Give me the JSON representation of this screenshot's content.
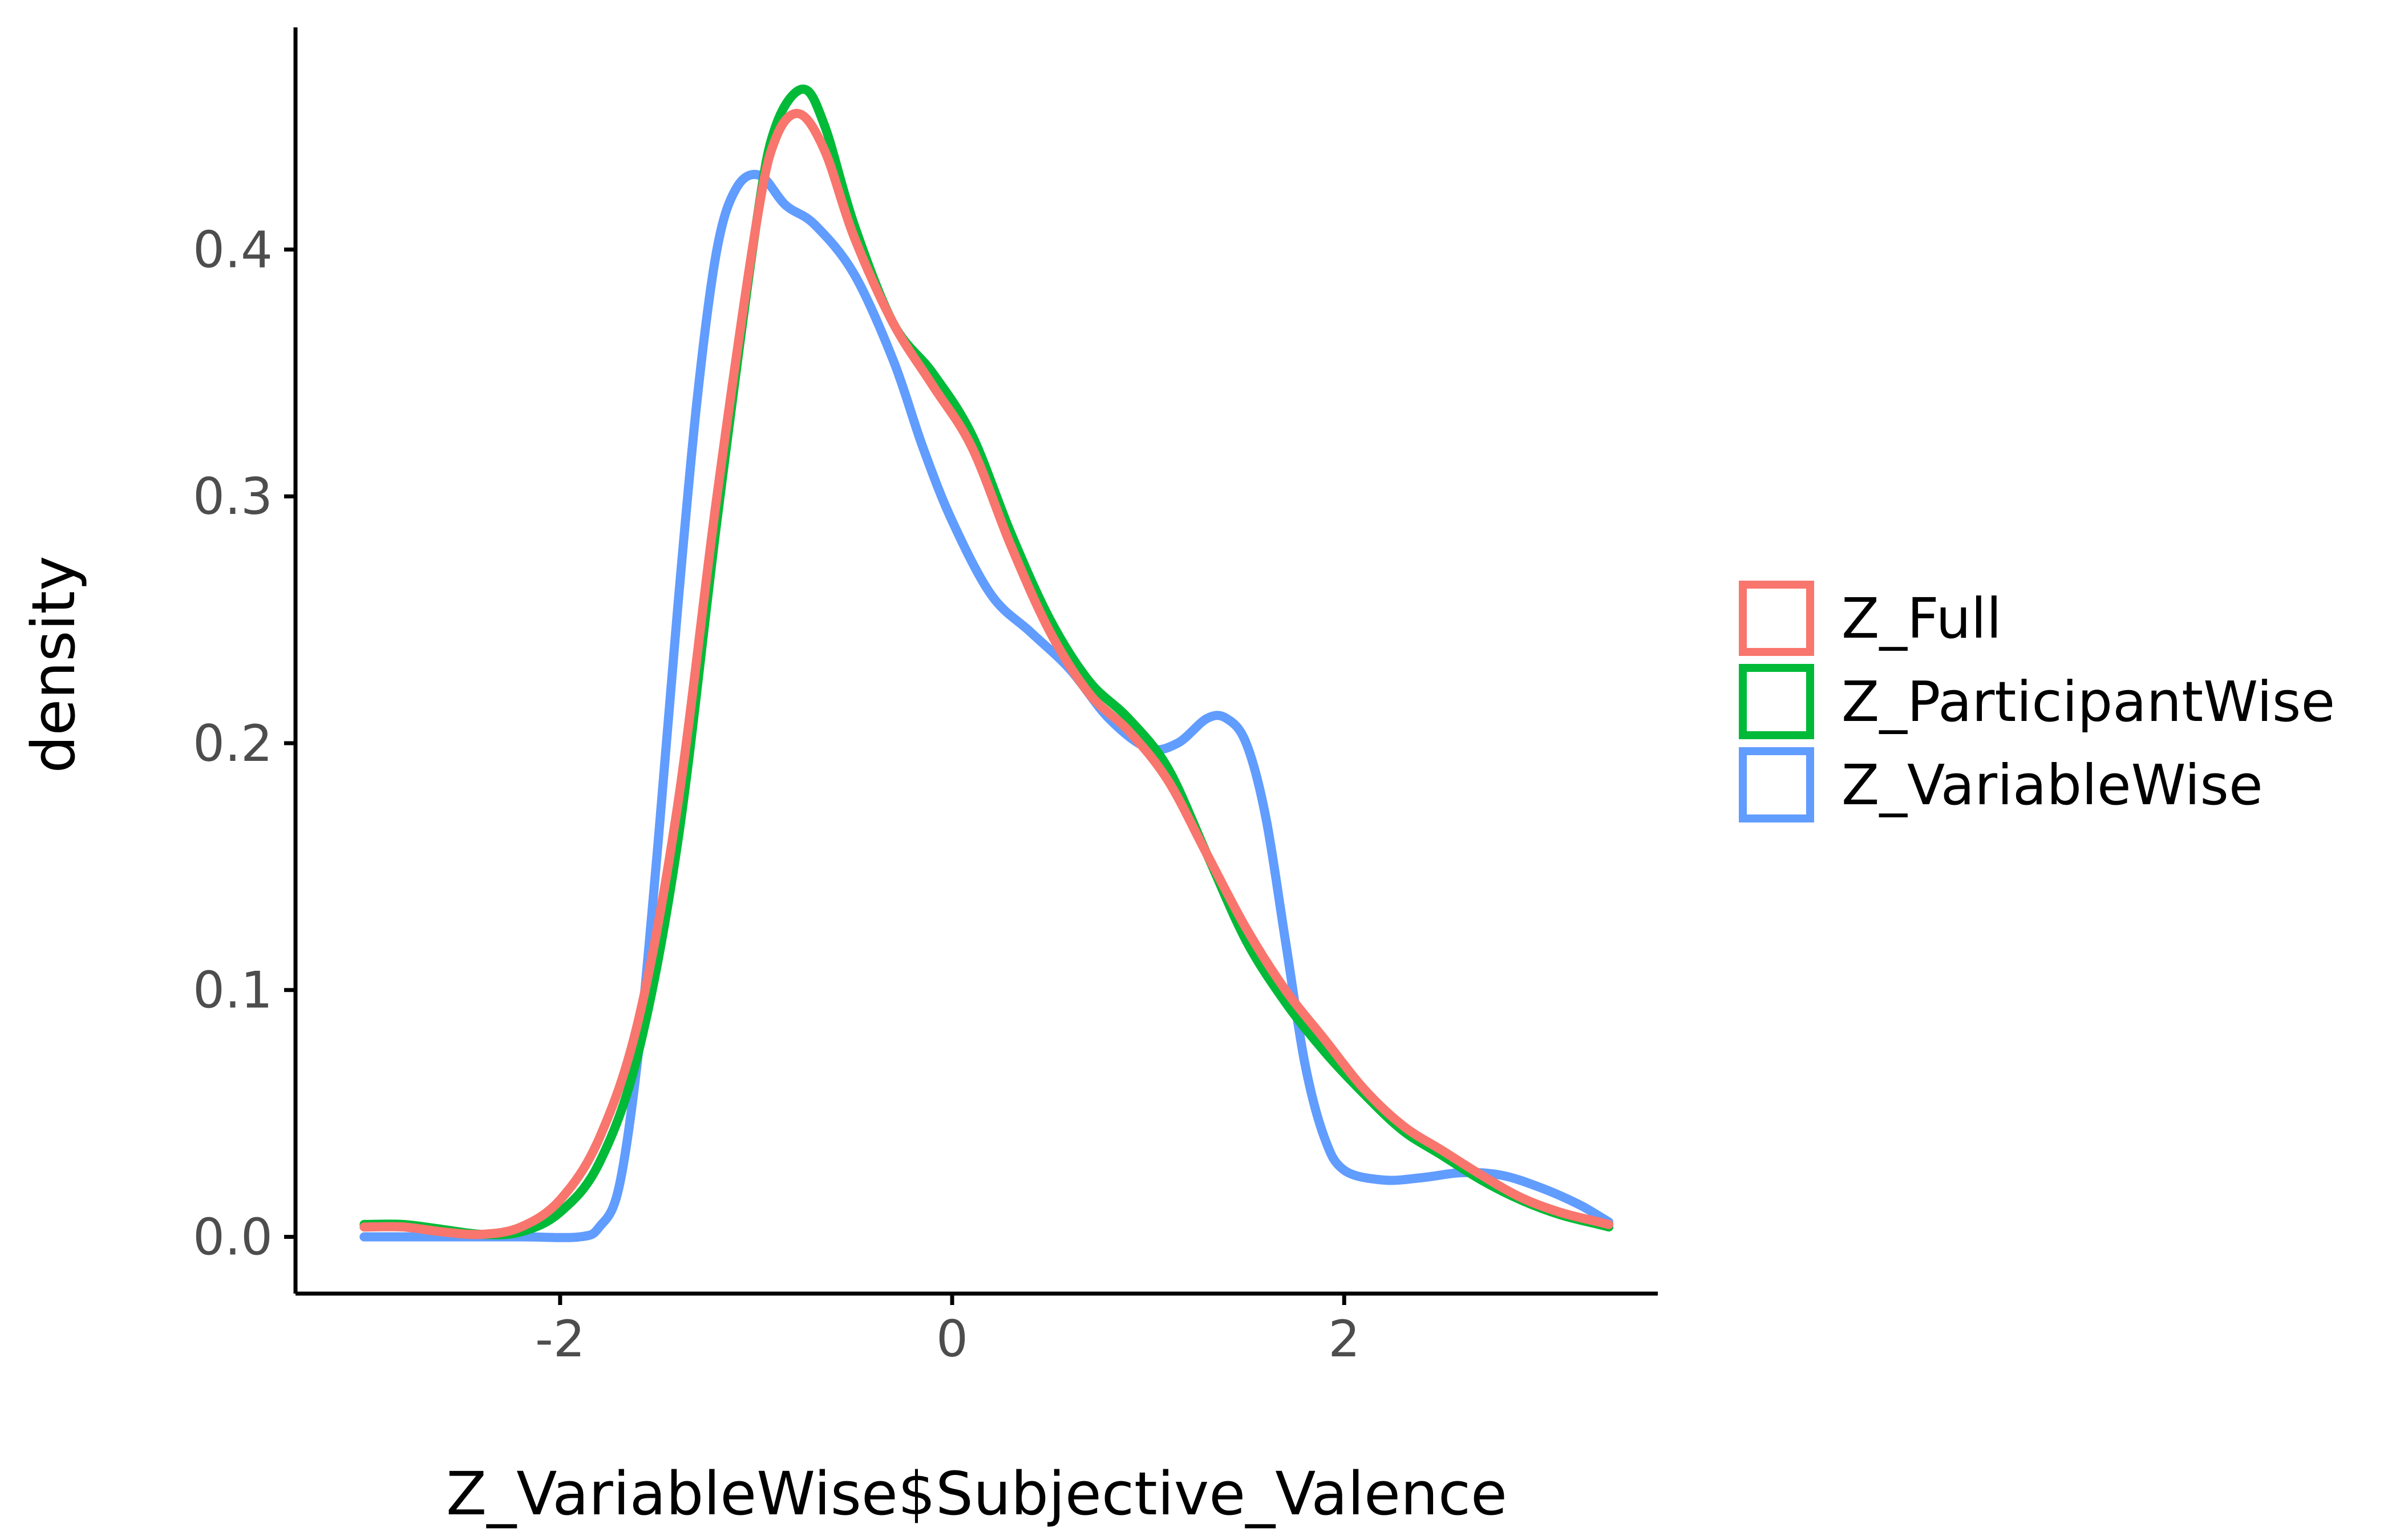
{
  "chart_data": {
    "type": "line",
    "title": "",
    "xlabel": "Z_VariableWise$Subjective_Valence",
    "ylabel": "density",
    "xlim": [
      -3.35,
      3.6
    ],
    "ylim": [
      -0.023,
      0.49
    ],
    "x_ticks": [
      {
        "value": -2,
        "label": "-2"
      },
      {
        "value": 0,
        "label": "0"
      },
      {
        "value": 2,
        "label": "2"
      }
    ],
    "y_ticks": [
      {
        "value": 0.0,
        "label": "0.0"
      },
      {
        "value": 0.1,
        "label": "0.1"
      },
      {
        "value": 0.2,
        "label": "0.2"
      },
      {
        "value": 0.3,
        "label": "0.3"
      },
      {
        "value": 0.4,
        "label": "0.4"
      }
    ],
    "grid": false,
    "legend_position": "right",
    "series": [
      {
        "name": "Z_Full",
        "color": "#F8766D",
        "points": [
          [
            -3.0,
            0.004
          ],
          [
            -2.8,
            0.004
          ],
          [
            -2.6,
            0.002
          ],
          [
            -2.4,
            0.001
          ],
          [
            -2.2,
            0.004
          ],
          [
            -2.0,
            0.015
          ],
          [
            -1.8,
            0.04
          ],
          [
            -1.6,
            0.088
          ],
          [
            -1.4,
            0.175
          ],
          [
            -1.2,
            0.3
          ],
          [
            -1.0,
            0.41
          ],
          [
            -0.9,
            0.445
          ],
          [
            -0.78,
            0.455
          ],
          [
            -0.65,
            0.44
          ],
          [
            -0.5,
            0.405
          ],
          [
            -0.3,
            0.37
          ],
          [
            -0.1,
            0.345
          ],
          [
            0.1,
            0.32
          ],
          [
            0.3,
            0.28
          ],
          [
            0.5,
            0.245
          ],
          [
            0.7,
            0.22
          ],
          [
            0.9,
            0.205
          ],
          [
            1.1,
            0.185
          ],
          [
            1.3,
            0.155
          ],
          [
            1.5,
            0.125
          ],
          [
            1.7,
            0.1
          ],
          [
            1.9,
            0.08
          ],
          [
            2.1,
            0.06
          ],
          [
            2.3,
            0.045
          ],
          [
            2.5,
            0.035
          ],
          [
            2.7,
            0.025
          ],
          [
            2.9,
            0.016
          ],
          [
            3.1,
            0.01
          ],
          [
            3.3,
            0.006
          ],
          [
            3.35,
            0.005
          ]
        ]
      },
      {
        "name": "Z_ParticipantWise",
        "color": "#00BA38",
        "points": [
          [
            -3.0,
            0.005
          ],
          [
            -2.8,
            0.005
          ],
          [
            -2.6,
            0.003
          ],
          [
            -2.4,
            0.001
          ],
          [
            -2.2,
            0.002
          ],
          [
            -2.0,
            0.01
          ],
          [
            -1.8,
            0.03
          ],
          [
            -1.6,
            0.075
          ],
          [
            -1.4,
            0.16
          ],
          [
            -1.2,
            0.29
          ],
          [
            -1.0,
            0.41
          ],
          [
            -0.9,
            0.45
          ],
          [
            -0.76,
            0.465
          ],
          [
            -0.65,
            0.45
          ],
          [
            -0.5,
            0.41
          ],
          [
            -0.3,
            0.37
          ],
          [
            -0.1,
            0.35
          ],
          [
            0.1,
            0.325
          ],
          [
            0.3,
            0.285
          ],
          [
            0.5,
            0.25
          ],
          [
            0.7,
            0.225
          ],
          [
            0.9,
            0.21
          ],
          [
            1.1,
            0.19
          ],
          [
            1.3,
            0.155
          ],
          [
            1.5,
            0.12
          ],
          [
            1.7,
            0.095
          ],
          [
            1.9,
            0.075
          ],
          [
            2.1,
            0.058
          ],
          [
            2.3,
            0.043
          ],
          [
            2.5,
            0.033
          ],
          [
            2.7,
            0.023
          ],
          [
            2.9,
            0.015
          ],
          [
            3.1,
            0.009
          ],
          [
            3.3,
            0.005
          ],
          [
            3.35,
            0.004
          ]
        ]
      },
      {
        "name": "Z_VariableWise",
        "color": "#619CFF",
        "points": [
          [
            -3.0,
            0.0
          ],
          [
            -2.6,
            0.0
          ],
          [
            -2.2,
            0.0
          ],
          [
            -1.9,
            0.0
          ],
          [
            -1.8,
            0.004
          ],
          [
            -1.7,
            0.02
          ],
          [
            -1.6,
            0.075
          ],
          [
            -1.5,
            0.16
          ],
          [
            -1.4,
            0.255
          ],
          [
            -1.3,
            0.34
          ],
          [
            -1.2,
            0.4
          ],
          [
            -1.1,
            0.425
          ],
          [
            -0.98,
            0.43
          ],
          [
            -0.85,
            0.418
          ],
          [
            -0.7,
            0.41
          ],
          [
            -0.5,
            0.39
          ],
          [
            -0.3,
            0.355
          ],
          [
            -0.15,
            0.32
          ],
          [
            0.0,
            0.29
          ],
          [
            0.2,
            0.26
          ],
          [
            0.4,
            0.245
          ],
          [
            0.6,
            0.23
          ],
          [
            0.8,
            0.21
          ],
          [
            1.0,
            0.198
          ],
          [
            1.15,
            0.2
          ],
          [
            1.3,
            0.21
          ],
          [
            1.4,
            0.21
          ],
          [
            1.5,
            0.2
          ],
          [
            1.6,
            0.17
          ],
          [
            1.7,
            0.12
          ],
          [
            1.8,
            0.07
          ],
          [
            1.9,
            0.04
          ],
          [
            2.0,
            0.027
          ],
          [
            2.2,
            0.023
          ],
          [
            2.4,
            0.024
          ],
          [
            2.6,
            0.026
          ],
          [
            2.8,
            0.025
          ],
          [
            3.0,
            0.02
          ],
          [
            3.2,
            0.013
          ],
          [
            3.35,
            0.006
          ]
        ]
      }
    ]
  }
}
